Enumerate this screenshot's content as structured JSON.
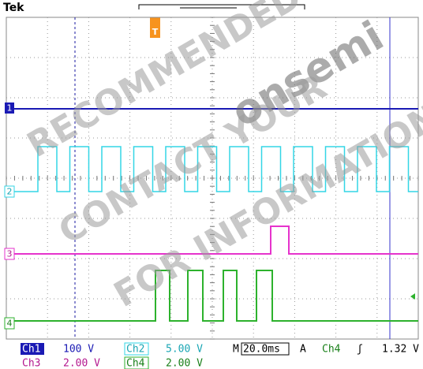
{
  "header": {
    "brand": "Tek"
  },
  "watermark": [
    "RECOMMENDED FOR",
    "onsemi",
    "CONTACT YOUR",
    "FOR INFORMATION"
  ],
  "channels": [
    {
      "label": "1",
      "readout_name": "Ch1",
      "scale": "100 V"
    },
    {
      "label": "2",
      "readout_name": "Ch2",
      "scale": "5.00 V"
    },
    {
      "label": "3",
      "readout_name": "Ch3",
      "scale": "2.00 V"
    },
    {
      "label": "4",
      "readout_name": "Ch4",
      "scale": "2.00 V"
    }
  ],
  "timebase": {
    "prefix": "M",
    "value": "20.0ms"
  },
  "trigger": {
    "prefix": "A",
    "source": "Ch4",
    "slope": "ʃ",
    "level": "1.32 V",
    "marker": "T"
  }
}
